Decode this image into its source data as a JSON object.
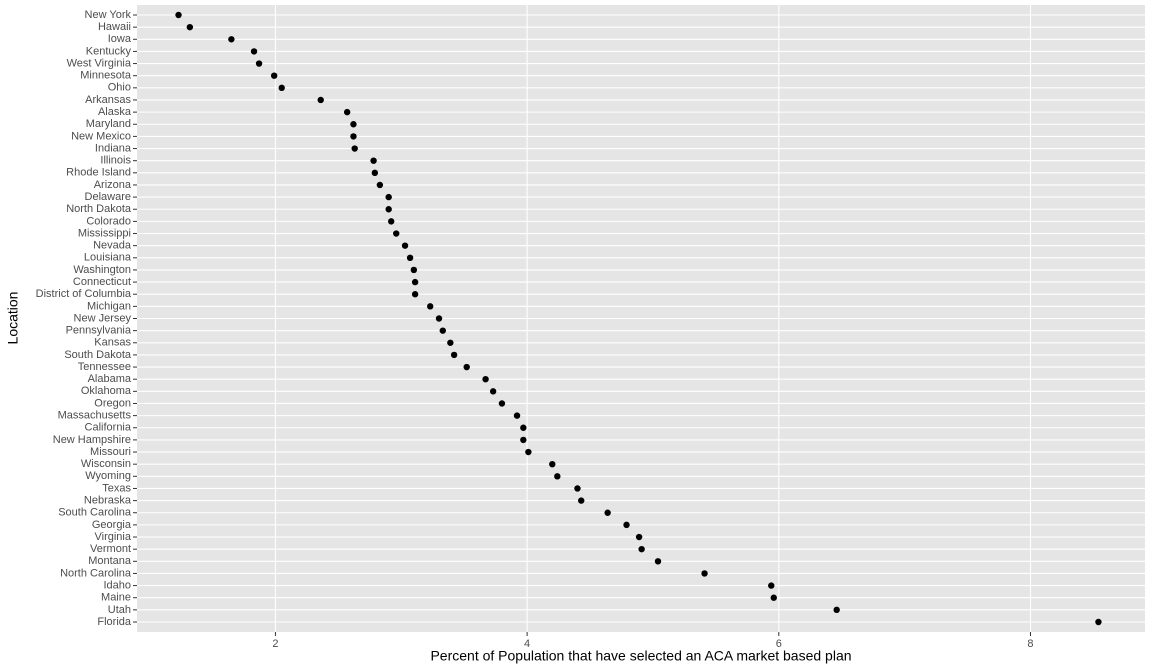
{
  "chart_data": {
    "type": "dot",
    "x_label": "Percent of Population that have selected an ACA market based plan",
    "y_label": "Location",
    "categories": [
      "New York",
      "Hawaii",
      "Iowa",
      "Kentucky",
      "West Virginia",
      "Minnesota",
      "Ohio",
      "Arkansas",
      "Alaska",
      "Maryland",
      "New Mexico",
      "Indiana",
      "Illinois",
      "Rhode Island",
      "Arizona",
      "Delaware",
      "North Dakota",
      "Colorado",
      "Mississippi",
      "Nevada",
      "Louisiana",
      "Washington",
      "Connecticut",
      "District of Columbia",
      "Michigan",
      "New Jersey",
      "Pennsylvania",
      "Kansas",
      "South Dakota",
      "Tennessee",
      "Alabama",
      "Oklahoma",
      "Oregon",
      "Massachusetts",
      "California",
      "New Hampshire",
      "Missouri",
      "Wisconsin",
      "Wyoming",
      "Texas",
      "Nebraska",
      "South Carolina",
      "Georgia",
      "Virginia",
      "Vermont",
      "Montana",
      "North Carolina",
      "Idaho",
      "Maine",
      "Utah",
      "Florida"
    ],
    "values": [
      1.23,
      1.32,
      1.65,
      1.83,
      1.87,
      1.99,
      2.05,
      2.36,
      2.57,
      2.62,
      2.62,
      2.63,
      2.78,
      2.79,
      2.83,
      2.9,
      2.9,
      2.92,
      2.96,
      3.03,
      3.07,
      3.1,
      3.11,
      3.11,
      3.23,
      3.3,
      3.33,
      3.39,
      3.42,
      3.52,
      3.67,
      3.73,
      3.8,
      3.92,
      3.97,
      3.97,
      4.01,
      4.2,
      4.24,
      4.4,
      4.43,
      4.64,
      4.79,
      4.89,
      4.91,
      5.04,
      5.41,
      5.94,
      5.96,
      6.46,
      8.54
    ],
    "color": "#000000",
    "xlim": [
      0.9,
      8.91
    ],
    "xticks": [
      2,
      4,
      6,
      8
    ],
    "grid": true
  }
}
